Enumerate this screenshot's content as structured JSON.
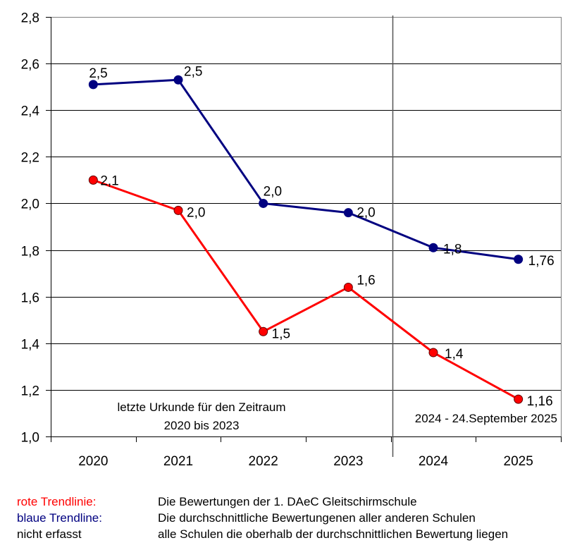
{
  "chart_data": {
    "type": "line",
    "title": "",
    "xlabel": "",
    "ylabel": "",
    "categories": [
      "2020",
      "2021",
      "2022",
      "2023",
      "2024",
      "2025"
    ],
    "ylim": [
      1.0,
      2.8
    ],
    "yticks": [
      "1,0",
      "1,2",
      "1,4",
      "1,6",
      "1,8",
      "2,0",
      "2,2",
      "2,4",
      "2,6",
      "2,8"
    ],
    "ytick_values": [
      1.0,
      1.2,
      1.4,
      1.6,
      1.8,
      2.0,
      2.2,
      2.4,
      2.6,
      2.8
    ],
    "grid": true,
    "series": [
      {
        "name": "blaue Trendline",
        "color": "#000080",
        "values": [
          2.51,
          2.53,
          2.0,
          1.96,
          1.81,
          1.76
        ],
        "labels": [
          "2,5",
          "2,5",
          "2,0",
          "2,0",
          "1,8",
          "1,76"
        ]
      },
      {
        "name": "rote Trendlinie",
        "color": "#ff0000",
        "values": [
          2.1,
          1.97,
          1.45,
          1.64,
          1.36,
          1.16
        ],
        "labels": [
          "2,1",
          "2,0",
          "1,5",
          "1,6",
          "1,4",
          "1,16"
        ]
      }
    ],
    "separator_between": [
      "2023",
      "2024"
    ],
    "annotations": {
      "left_period_line1": "letzte Urkunde für den Zeitraum",
      "left_period_line2": "2020 bis 2023",
      "right_period": "2024 - 24.September 2025"
    }
  },
  "legend": [
    {
      "key": "rote Trendlinie:",
      "color": "#ff0000",
      "desc": "Die Bewertungen der 1. DAeC Gleitschirmschule"
    },
    {
      "key": "blaue Trendline:",
      "color": "#000080",
      "desc": "Die durchschnittliche Bewertungenen aller anderen Schulen"
    },
    {
      "key": "nicht erfasst",
      "color": "#000000",
      "desc": "alle Schulen die oberhalb der durchschnittlichen Bewertung liegen"
    }
  ]
}
